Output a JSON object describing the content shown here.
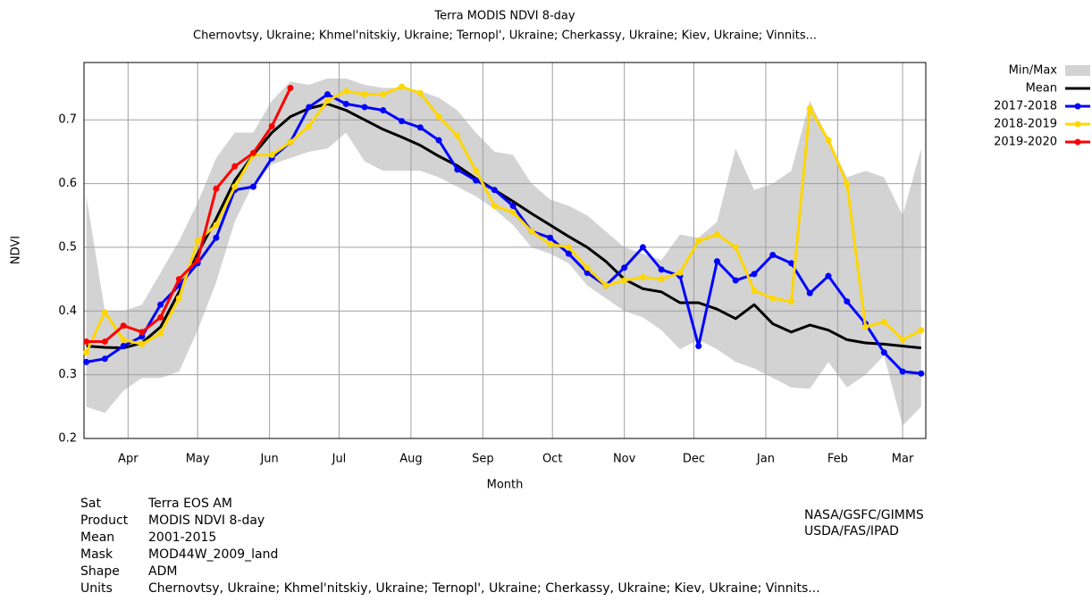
{
  "chart_data": {
    "type": "line",
    "title": "Terra MODIS NDVI 8-day",
    "subtitle": "Chernovtsy, Ukraine; Khmel'nitskiy, Ukraine; Ternopl', Ukraine; Cherkassy, Ukraine; Kiev, Ukraine; Vinnits...",
    "x_label": "Month",
    "y_label": "NDVI",
    "x": [
      73,
      81,
      89,
      97,
      105,
      113,
      121,
      129,
      137,
      145,
      153,
      161,
      169,
      177,
      185,
      193,
      201,
      209,
      217,
      225,
      233,
      241,
      249,
      257,
      265,
      273,
      281,
      289,
      297,
      305,
      313,
      321,
      329,
      337,
      345,
      353,
      361,
      369,
      377,
      385,
      393,
      401,
      409,
      417,
      425,
      433
    ],
    "xlim": [
      72,
      435
    ],
    "xticks": [
      {
        "value": 91,
        "label": "Apr"
      },
      {
        "value": 121,
        "label": "May"
      },
      {
        "value": 152,
        "label": "Jun"
      },
      {
        "value": 182,
        "label": "Jul"
      },
      {
        "value": 213,
        "label": "Aug"
      },
      {
        "value": 244,
        "label": "Sep"
      },
      {
        "value": 274,
        "label": "Oct"
      },
      {
        "value": 305,
        "label": "Nov"
      },
      {
        "value": 335,
        "label": "Dec"
      },
      {
        "value": 366,
        "label": "Jan"
      },
      {
        "value": 397,
        "label": "Feb"
      },
      {
        "value": 425,
        "label": "Mar"
      }
    ],
    "ylim": [
      0.2,
      0.79
    ],
    "yticks": [
      0.2,
      0.3,
      0.4,
      0.5,
      0.6,
      0.7
    ],
    "grid": true,
    "band": {
      "name": "Min/Max",
      "color": "#d3d3d3",
      "high": [
        0.58,
        0.4,
        0.4,
        0.41,
        0.46,
        0.51,
        0.57,
        0.64,
        0.68,
        0.68,
        0.73,
        0.76,
        0.755,
        0.765,
        0.765,
        0.755,
        0.75,
        0.75,
        0.745,
        0.735,
        0.715,
        0.68,
        0.65,
        0.645,
        0.6,
        0.575,
        0.565,
        0.55,
        0.525,
        0.5,
        0.49,
        0.48,
        0.52,
        0.515,
        0.54,
        0.655,
        0.59,
        0.6,
        0.62,
        0.73,
        0.67,
        0.61,
        0.62,
        0.61,
        0.55,
        0.655
      ],
      "low": [
        0.25,
        0.24,
        0.275,
        0.295,
        0.295,
        0.305,
        0.37,
        0.445,
        0.54,
        0.6,
        0.63,
        0.64,
        0.65,
        0.655,
        0.68,
        0.635,
        0.62,
        0.62,
        0.62,
        0.61,
        0.595,
        0.58,
        0.56,
        0.535,
        0.5,
        0.49,
        0.475,
        0.44,
        0.42,
        0.4,
        0.39,
        0.37,
        0.34,
        0.355,
        0.34,
        0.32,
        0.31,
        0.295,
        0.28,
        0.278,
        0.32,
        0.28,
        0.3,
        0.33,
        0.22,
        0.25
      ]
    },
    "series": [
      {
        "name": "Mean",
        "color": "#000000",
        "markers": false,
        "values": [
          0.345,
          0.343,
          0.342,
          0.35,
          0.375,
          0.43,
          0.49,
          0.545,
          0.605,
          0.645,
          0.68,
          0.705,
          0.718,
          0.725,
          0.715,
          0.7,
          0.685,
          0.673,
          0.66,
          0.643,
          0.628,
          0.608,
          0.59,
          0.572,
          0.553,
          0.535,
          0.517,
          0.5,
          0.478,
          0.45,
          0.435,
          0.43,
          0.413,
          0.413,
          0.403,
          0.388,
          0.41,
          0.38,
          0.367,
          0.378,
          0.37,
          0.355,
          0.35,
          0.348,
          0.345,
          0.342
        ]
      },
      {
        "name": "2017-2018",
        "color": "#0000ff",
        "markers": true,
        "values": [
          0.32,
          0.325,
          0.345,
          0.36,
          0.41,
          0.44,
          0.475,
          0.515,
          0.59,
          0.595,
          0.64,
          0.665,
          0.72,
          0.74,
          0.725,
          0.72,
          0.715,
          0.698,
          0.688,
          0.668,
          0.622,
          0.605,
          0.59,
          0.565,
          0.525,
          0.515,
          0.49,
          0.46,
          0.44,
          0.468,
          0.5,
          0.465,
          0.455,
          0.345,
          0.478,
          0.448,
          0.458,
          0.488,
          0.475,
          0.428,
          0.455,
          0.415,
          0.38,
          0.335,
          0.305,
          0.302
        ]
      },
      {
        "name": "2018-2019",
        "color": "#ffd700",
        "markers": true,
        "values": [
          0.335,
          0.398,
          0.355,
          0.348,
          0.365,
          0.42,
          0.51,
          0.535,
          0.595,
          0.645,
          0.645,
          0.665,
          0.69,
          0.73,
          0.745,
          0.74,
          0.74,
          0.752,
          0.742,
          0.705,
          0.675,
          0.62,
          0.565,
          0.555,
          0.525,
          0.505,
          0.5,
          0.468,
          0.44,
          0.448,
          0.453,
          0.45,
          0.46,
          0.51,
          0.52,
          0.5,
          0.432,
          0.42,
          0.415,
          0.718,
          0.668,
          0.6,
          0.375,
          0.383,
          0.355,
          0.37
        ]
      },
      {
        "name": "2019-2020",
        "color": "#ff0000",
        "markers": true,
        "values": [
          0.352,
          0.352,
          0.377,
          0.367,
          0.39,
          0.45,
          0.48,
          0.592,
          0.627,
          0.648,
          0.69,
          0.75,
          null,
          null,
          null,
          null,
          null,
          null,
          null,
          null,
          null,
          null,
          null,
          null,
          null,
          null,
          null,
          null,
          null,
          null,
          null,
          null,
          null,
          null,
          null,
          null,
          null,
          null,
          null,
          null,
          null,
          null,
          null,
          null,
          null,
          null
        ]
      }
    ]
  },
  "footer": {
    "rows": [
      [
        "Sat",
        "Terra EOS AM"
      ],
      [
        "Product",
        "MODIS NDVI 8-day"
      ],
      [
        "Mean",
        "2001-2015"
      ],
      [
        "Mask",
        "MOD44W_2009_land"
      ],
      [
        "Shape",
        "ADM"
      ],
      [
        "Units",
        "Chernovtsy, Ukraine; Khmel'nitskiy, Ukraine; Ternopl', Ukraine; Cherkassy, Ukraine; Kiev, Ukraine; Vinnits..."
      ]
    ],
    "credits": [
      "NASA/GSFC/GIMMS",
      "USDA/FAS/IPAD"
    ]
  }
}
